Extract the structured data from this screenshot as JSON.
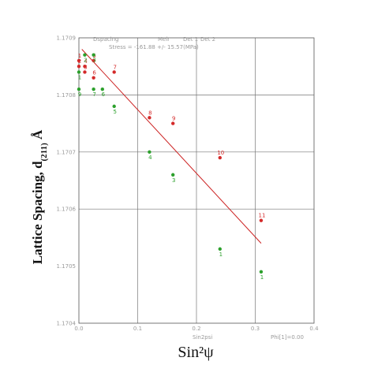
{
  "chart_data": {
    "type": "scatter",
    "header": {
      "dataset": "Dspacing",
      "field": "Meir",
      "legend": [
        {
          "name": "Det 1",
          "color": "#d42a2a"
        },
        {
          "name": "Det 2",
          "color": "#2ca02c"
        }
      ],
      "stress_text": "Stress = -161.88 +/- 15.57(MPa)"
    },
    "xlabel": "Sin²ψ",
    "ylabel": "Lattice Spacing, d(211) Å",
    "ylabel_parts": {
      "main": "Lattice Spacing, d",
      "sub": "(211)",
      "unit": " Å"
    },
    "inner_xlabel": "Sin2psi",
    "phi_text": "Phi[1]=0.00",
    "xlim": [
      0.0,
      0.4
    ],
    "ylim": [
      1.1704,
      1.1709
    ],
    "xticks": [
      {
        "v": 0.0,
        "label": "0.0"
      },
      {
        "v": 0.1,
        "label": "0.1"
      },
      {
        "v": 0.2,
        "label": "0.2"
      },
      {
        "v": 0.3,
        "label": "0.3"
      },
      {
        "v": 0.4,
        "label": "0.4"
      }
    ],
    "yticks": [
      {
        "v": 1.1704,
        "label": "1.1704"
      },
      {
        "v": 1.1705,
        "label": "1.1705"
      },
      {
        "v": 1.1706,
        "label": "1.1706"
      },
      {
        "v": 1.1707,
        "label": "1.1707"
      },
      {
        "v": 1.1708,
        "label": "1.1708"
      },
      {
        "v": 1.1709,
        "label": "1.1709"
      }
    ],
    "grid": true,
    "series": [
      {
        "name": "Det 1",
        "color": "#d42a2a",
        "points": [
          {
            "x": 0.0,
            "y": 1.17086,
            "label": "1"
          },
          {
            "x": 0.0,
            "y": 1.17085,
            "label": "2"
          },
          {
            "x": 0.01,
            "y": 1.17084,
            "label": "3"
          },
          {
            "x": 0.01,
            "y": 1.17085,
            "label": "4"
          },
          {
            "x": 0.025,
            "y": 1.17086,
            "label": "5"
          },
          {
            "x": 0.025,
            "y": 1.17083,
            "label": "6"
          },
          {
            "x": 0.06,
            "y": 1.17084,
            "label": "7"
          },
          {
            "x": 0.12,
            "y": 1.17076,
            "label": "8"
          },
          {
            "x": 0.16,
            "y": 1.17075,
            "label": "9"
          },
          {
            "x": 0.24,
            "y": 1.17069,
            "label": "10"
          },
          {
            "x": 0.31,
            "y": 1.17058,
            "label": "11"
          }
        ]
      },
      {
        "name": "Det 2",
        "color": "#2ca02c",
        "points": [
          {
            "x": 0.0,
            "y": 1.17084,
            "label": "1"
          },
          {
            "x": 0.0,
            "y": 1.17081,
            "label": "9"
          },
          {
            "x": 0.01,
            "y": 1.17087,
            "label": "2"
          },
          {
            "x": 0.025,
            "y": 1.17087,
            "label": "3"
          },
          {
            "x": 0.025,
            "y": 1.17081,
            "label": "7"
          },
          {
            "x": 0.04,
            "y": 1.17081,
            "label": "6"
          },
          {
            "x": 0.06,
            "y": 1.17078,
            "label": "5"
          },
          {
            "x": 0.12,
            "y": 1.1707,
            "label": "4"
          },
          {
            "x": 0.16,
            "y": 1.17066,
            "label": "3"
          },
          {
            "x": 0.24,
            "y": 1.17053,
            "label": "1"
          },
          {
            "x": 0.31,
            "y": 1.17049,
            "label": "1"
          }
        ]
      }
    ],
    "fit_line": {
      "color": "#cc2222",
      "x0": 0.005,
      "y0": 1.17088,
      "x1": 0.31,
      "y1": 1.17054
    }
  }
}
